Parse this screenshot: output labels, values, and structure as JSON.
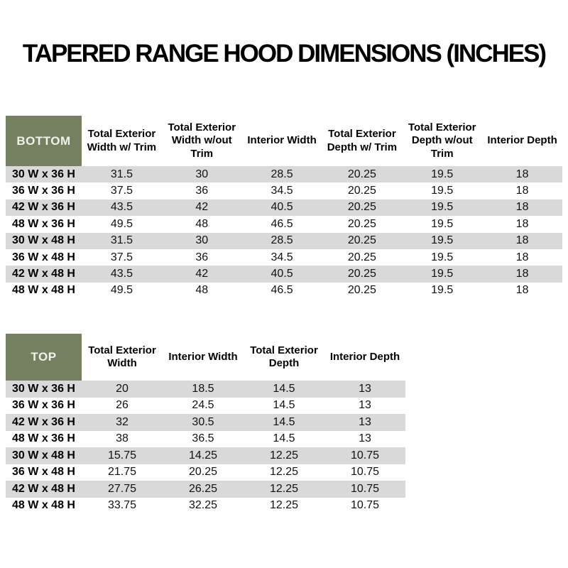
{
  "page": {
    "title": "TAPERED RANGE HOOD DIMENSIONS (INCHES)"
  },
  "colors": {
    "header_cell_bg": "#758060",
    "header_cell_text": "#f1f1ee",
    "striped_row_bg": "#d9d9d9",
    "page_bg": "#ffffff",
    "text": "#000000"
  },
  "bottom_table": {
    "corner_label": "BOTTOM",
    "columns": [
      "Total Exterior Width w/ Trim",
      "Total Exterior Width w/out Trim",
      "Interior Width",
      "Total Exterior Depth w/ Trim",
      "Total Exterior Depth w/out Trim",
      "Interior Depth"
    ],
    "rows": [
      {
        "label": "30 W x 36 H",
        "values": [
          "31.5",
          "30",
          "28.5",
          "20.25",
          "19.5",
          "18"
        ]
      },
      {
        "label": "36 W x 36 H",
        "values": [
          "37.5",
          "36",
          "34.5",
          "20.25",
          "19.5",
          "18"
        ]
      },
      {
        "label": "42 W x 36 H",
        "values": [
          "43.5",
          "42",
          "40.5",
          "20.25",
          "19.5",
          "18"
        ]
      },
      {
        "label": "48 W x 36 H",
        "values": [
          "49.5",
          "48",
          "46.5",
          "20.25",
          "19.5",
          "18"
        ]
      },
      {
        "label": "30 W x 48 H",
        "values": [
          "31.5",
          "30",
          "28.5",
          "20.25",
          "19.5",
          "18"
        ]
      },
      {
        "label": "36 W x 48 H",
        "values": [
          "37.5",
          "36",
          "34.5",
          "20.25",
          "19.5",
          "18"
        ]
      },
      {
        "label": "42 W x 48 H",
        "values": [
          "43.5",
          "42",
          "40.5",
          "20.25",
          "19.5",
          "18"
        ]
      },
      {
        "label": "48 W x 48 H",
        "values": [
          "49.5",
          "48",
          "46.5",
          "20.25",
          "19.5",
          "18"
        ]
      }
    ]
  },
  "top_table": {
    "corner_label": "TOP",
    "columns": [
      "Total Exterior Width",
      "Interior Width",
      "Total Exterior Depth",
      "Interior Depth"
    ],
    "rows": [
      {
        "label": "30 W x 36 H",
        "values": [
          "20",
          "18.5",
          "14.5",
          "13"
        ]
      },
      {
        "label": "36 W x 36 H",
        "values": [
          "26",
          "24.5",
          "14.5",
          "13"
        ]
      },
      {
        "label": "42 W x 36 H",
        "values": [
          "32",
          "30.5",
          "14.5",
          "13"
        ]
      },
      {
        "label": "48 W x 36 H",
        "values": [
          "38",
          "36.5",
          "14.5",
          "13"
        ]
      },
      {
        "label": "30 W x 48 H",
        "values": [
          "15.75",
          "14.25",
          "12.25",
          "10.75"
        ]
      },
      {
        "label": "36 W x 48 H",
        "values": [
          "21.75",
          "20.25",
          "12.25",
          "10.75"
        ]
      },
      {
        "label": "42 W x 48 H",
        "values": [
          "27.75",
          "26.25",
          "12.25",
          "10.75"
        ]
      },
      {
        "label": "48 W x 48 H",
        "values": [
          "33.75",
          "32.25",
          "12.25",
          "10.75"
        ]
      }
    ]
  }
}
